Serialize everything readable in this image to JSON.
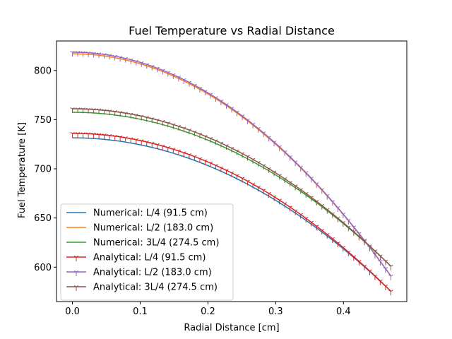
{
  "chart_data": {
    "type": "line",
    "title": "Fuel Temperature vs Radial Distance",
    "xlabel": "Radial Distance [cm]",
    "ylabel": "Fuel Temperature [K]",
    "xlim": [
      -0.0235,
      0.4935
    ],
    "ylim": [
      565,
      830
    ],
    "xticks": [
      0.0,
      0.1,
      0.2,
      0.3,
      0.4
    ],
    "xtick_labels": [
      "0.0",
      "0.1",
      "0.2",
      "0.3",
      "0.4"
    ],
    "yticks": [
      600,
      650,
      700,
      750,
      800
    ],
    "ytick_labels": [
      "600",
      "650",
      "700",
      "750",
      "800"
    ],
    "grid": false,
    "legend_position": "lower-left",
    "x_max": 0.47,
    "series": [
      {
        "name": "Numerical: L/4 (91.5 cm)",
        "kind": "numerical",
        "color": "#1f77b4",
        "t_center": 731.5,
        "t_edge": 575.5
      },
      {
        "name": "Numerical: L/2 (183.0 cm)",
        "kind": "numerical",
        "color": "#ff7f0e",
        "t_center": 817.0,
        "t_edge": 591.0
      },
      {
        "name": "Numerical: 3L/4 (274.5 cm)",
        "kind": "numerical",
        "color": "#2ca02c",
        "t_center": 757.5,
        "t_edge": 601.0
      },
      {
        "name": " Analytical: L/4 (91.5 cm)",
        "kind": "analytical",
        "color": "#d62728",
        "t_center": 736.0,
        "t_edge": 575.5
      },
      {
        "name": " Analytical: L/2 (183.0 cm)",
        "kind": "analytical",
        "color": "#9467bd",
        "t_center": 818.5,
        "t_edge": 591.0
      },
      {
        "name": " Analytical: 3L/4 (274.5 cm)",
        "kind": "analytical",
        "color": "#8c564b",
        "t_center": 761.0,
        "t_edge": 601.0
      }
    ]
  }
}
